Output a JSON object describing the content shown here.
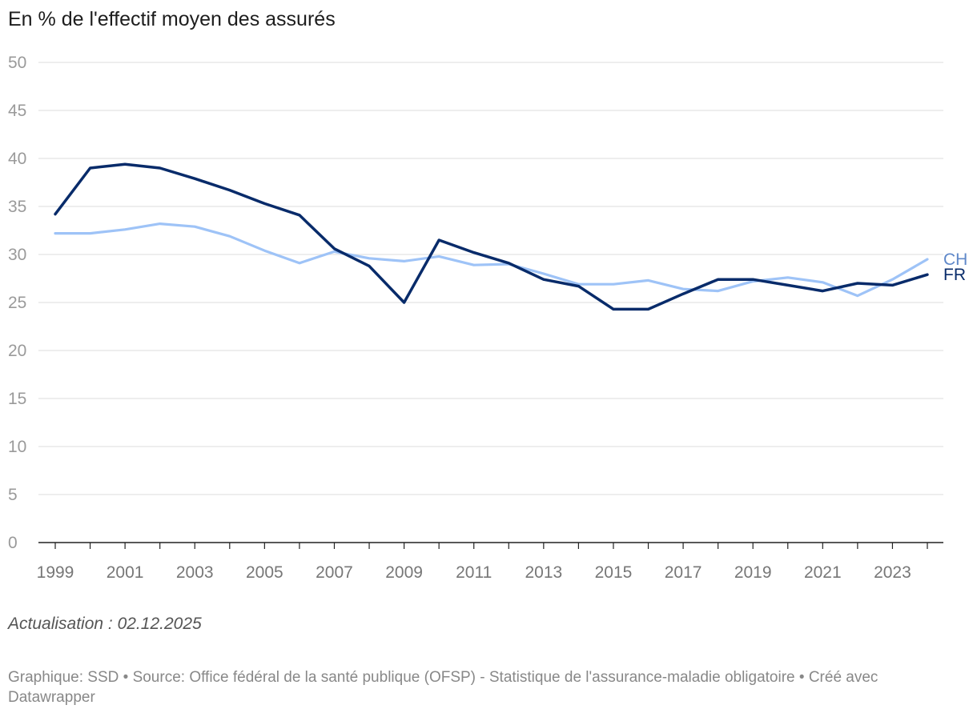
{
  "header": {
    "title": "En % de l'effectif moyen des assurés"
  },
  "footer": {
    "note": "Actualisation : 02.12.2025",
    "source": "Graphique: SSD • Source: Office fédéral de la santé publique (OFSP) - Statistique de l'assurance-maladie obligatoire • Créé avec Datawrapper"
  },
  "chart_data": {
    "type": "line",
    "title": "En % de l'effectif moyen des assurés",
    "xlabel": "",
    "ylabel": "",
    "x": [
      1999,
      2000,
      2001,
      2002,
      2003,
      2004,
      2005,
      2006,
      2007,
      2008,
      2009,
      2010,
      2011,
      2012,
      2013,
      2014,
      2015,
      2016,
      2017,
      2018,
      2019,
      2020,
      2021,
      2022,
      2023,
      2024
    ],
    "x_tick_labels": [
      "1999",
      "2001",
      "2003",
      "2005",
      "2007",
      "2009",
      "2011",
      "2013",
      "2015",
      "2017",
      "2019",
      "2021",
      "2023"
    ],
    "ylim": [
      0,
      50
    ],
    "y_ticks": [
      0,
      5,
      10,
      15,
      20,
      25,
      30,
      35,
      40,
      45,
      50
    ],
    "grid": true,
    "series": [
      {
        "name": "CH",
        "color": "#9ec3f7",
        "label_color": "#5f88c9",
        "values": [
          32.2,
          32.2,
          32.6,
          33.2,
          32.9,
          31.9,
          30.4,
          29.1,
          30.3,
          29.6,
          29.3,
          29.8,
          28.9,
          29.0,
          28.0,
          26.9,
          26.9,
          27.3,
          26.4,
          26.2,
          27.2,
          27.6,
          27.1,
          25.7,
          27.4,
          29.5
        ]
      },
      {
        "name": "FR",
        "color": "#082b6a",
        "label_color": "#082b6a",
        "values": [
          34.2,
          39.0,
          39.4,
          39.0,
          37.9,
          36.7,
          35.3,
          34.1,
          30.6,
          28.8,
          25.0,
          31.5,
          30.2,
          29.1,
          27.4,
          26.7,
          24.3,
          24.3,
          25.9,
          27.4,
          27.4,
          26.8,
          26.2,
          27.0,
          26.8,
          27.9
        ]
      }
    ]
  }
}
